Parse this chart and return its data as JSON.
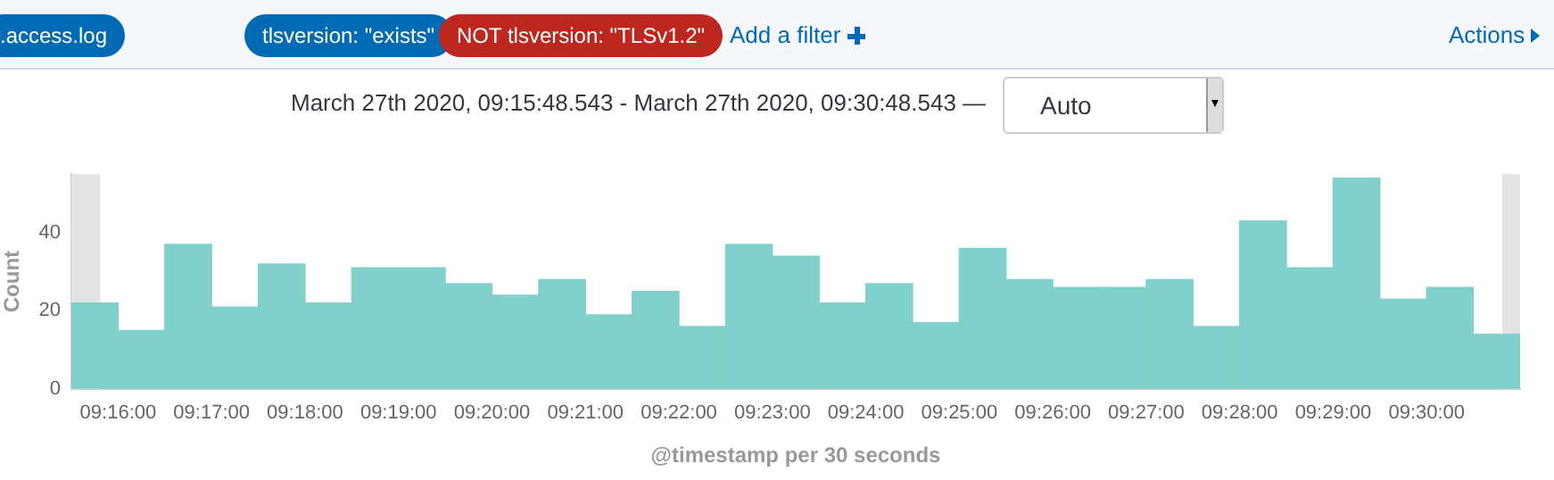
{
  "chart_data": {
    "type": "histogram",
    "title": "March 27th 2020, 09:15:48.543 - March 27th 2020, 09:30:48.543 —",
    "xlabel": "@timestamp per 30 seconds",
    "ylabel": "Count",
    "annotations": [
      ".access.log",
      "tlsversion: \"exists\"",
      "NOT tlsversion: \"TLSv1.2\"",
      "Add a filter",
      "Actions",
      "Auto"
    ],
    "bins": [
      9.2583333,
      9.2666667,
      9.275,
      9.2833333,
      9.2916667,
      9.3,
      9.3083333,
      9.3166667,
      9.325,
      9.3333333,
      9.3416667,
      9.35,
      9.3583333,
      9.3666667,
      9.375,
      9.3833333,
      9.3916667,
      9.4,
      9.4083333,
      9.4166667,
      9.425,
      9.4333333,
      9.4416667,
      9.45,
      9.4583333,
      9.4666667,
      9.475,
      9.4833333,
      9.4916667,
      9.5,
      9.5083333,
      9.5166667
    ],
    "values": [
      22,
      15,
      37,
      21,
      32,
      22,
      31,
      31,
      27,
      24,
      28,
      19,
      25,
      16,
      37,
      34,
      22,
      27,
      17,
      36,
      28,
      26,
      26,
      28,
      16,
      43,
      31,
      54,
      23,
      26,
      14
    ],
    "color": "#80d1cb",
    "xlim": [
      9.2583333,
      9.5166667
    ],
    "xticks": [
      {
        "value": 9.2666667,
        "label": "09:16:00"
      },
      {
        "value": 9.2833333,
        "label": "09:17:00"
      },
      {
        "value": 9.3,
        "label": "09:18:00"
      },
      {
        "value": 9.3166667,
        "label": "09:19:00"
      },
      {
        "value": 9.3333333,
        "label": "09:20:00"
      },
      {
        "value": 9.35,
        "label": "09:21:00"
      },
      {
        "value": 9.3666667,
        "label": "09:22:00"
      },
      {
        "value": 9.3833333,
        "label": "09:23:00"
      },
      {
        "value": 9.4,
        "label": "09:24:00"
      },
      {
        "value": 9.4166667,
        "label": "09:25:00"
      },
      {
        "value": 9.4333333,
        "label": "09:26:00"
      },
      {
        "value": 9.45,
        "label": "09:27:00"
      },
      {
        "value": 9.4666667,
        "label": "09:28:00"
      },
      {
        "value": 9.4833333,
        "label": "09:29:00"
      },
      {
        "value": 9.5,
        "label": "09:30:00"
      }
    ],
    "ylim": [
      0,
      55
    ],
    "yticks": [
      0,
      20,
      40
    ],
    "grid": false,
    "legend": false,
    "bands": [
      {
        "axis": "x",
        "from": 9.2583333,
        "to": 9.2634842,
        "color": "#e3e3e3"
      },
      {
        "axis": "x",
        "from": 9.5134842,
        "to": 9.5166667,
        "color": "#e3e3e3"
      }
    ]
  }
}
